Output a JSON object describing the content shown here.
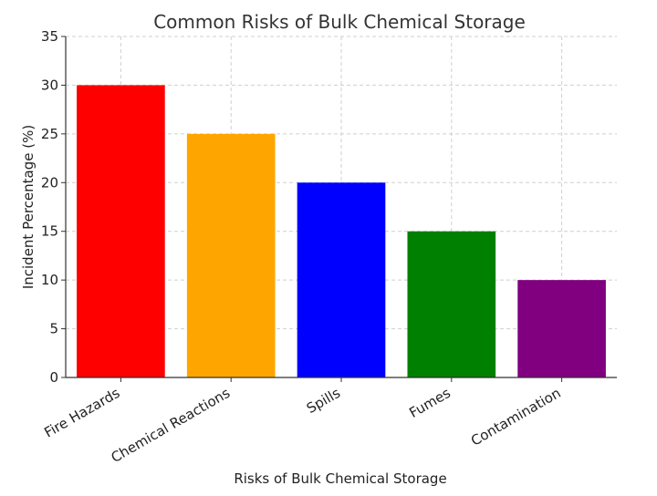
{
  "chart_data": {
    "type": "bar",
    "title": "Common Risks of Bulk Chemical Storage",
    "xlabel": "Risks of Bulk Chemical Storage",
    "ylabel": "Incident Percentage (%)",
    "categories": [
      "Fire Hazards",
      "Chemical Reactions",
      "Spills",
      "Fumes",
      "Contamination"
    ],
    "values": [
      30,
      25,
      20,
      15,
      10
    ],
    "colors": [
      "#ff0000",
      "#ffa500",
      "#0000ff",
      "#008000",
      "#800080"
    ],
    "ylim": [
      0,
      35
    ],
    "yticks": [
      0,
      5,
      10,
      15,
      20,
      25,
      30,
      35
    ],
    "grid": true,
    "legend": "none"
  }
}
